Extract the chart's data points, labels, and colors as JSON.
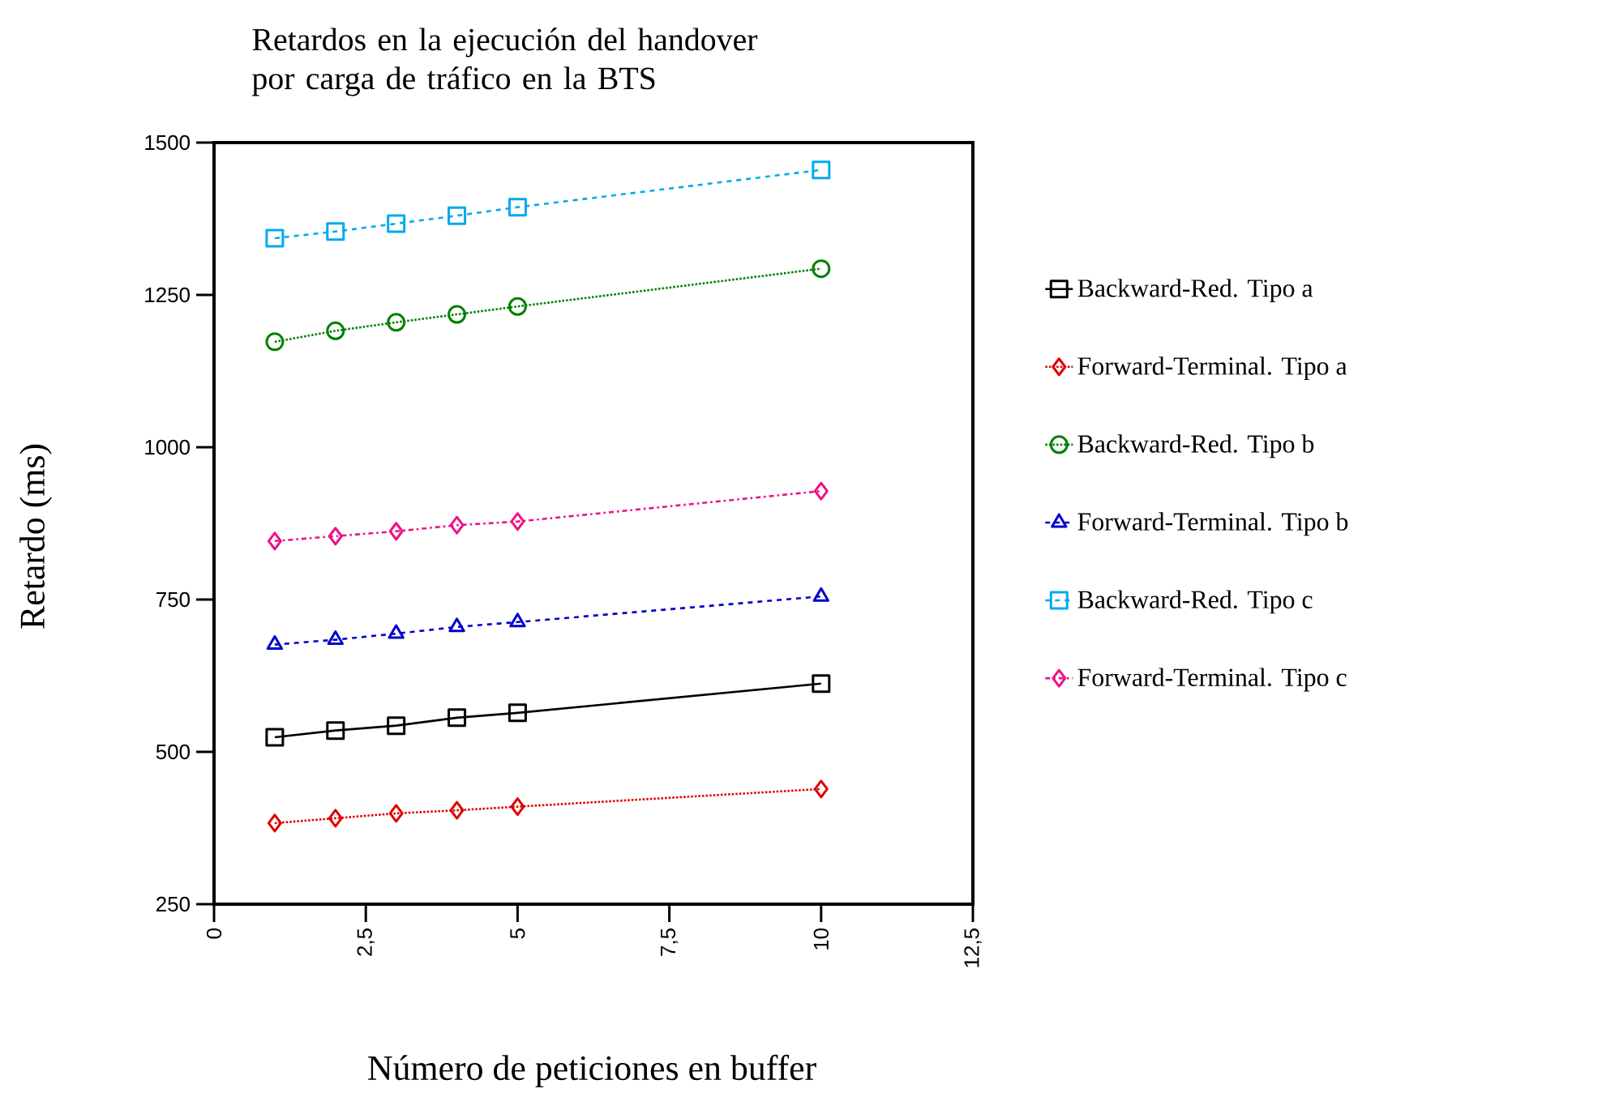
{
  "chart_data": {
    "type": "line",
    "title": "Retardos en la ejecución del handover por carga de tráfico en la BTS",
    "xlabel": "Número de peticiones en buffer",
    "ylabel": "Retardo (ms)",
    "xlim": [
      0,
      12.5
    ],
    "xticks": [
      0,
      {
        "value": 2.5,
        "label": "2,5"
      },
      5,
      {
        "value": 7.5,
        "label": "7,5"
      },
      10,
      {
        "value": 12.5,
        "label": "12,5"
      }
    ],
    "ylim": [
      250,
      1500
    ],
    "yticks": [
      250,
      500,
      750,
      1000,
      1250,
      1500
    ],
    "grid": false,
    "legend": "right",
    "x": [
      1,
      2,
      3,
      4,
      5,
      10
    ],
    "series": [
      {
        "name": "Backward-Red. Tipo a",
        "color": "#000000",
        "marker": "square",
        "line_style": "solid",
        "values": [
          524,
          535,
          543,
          556,
          564,
          612
        ]
      },
      {
        "name": "Forward-Terminal. Tipo a",
        "color": "#e00000",
        "marker": "diamond",
        "line_style": "dotted",
        "values": [
          383,
          391,
          399,
          404,
          410,
          439
        ]
      },
      {
        "name": "Backward-Red. Tipo b",
        "color": "#008000",
        "marker": "circle",
        "line_style": "dotted",
        "values": [
          1173,
          1191,
          1205,
          1218,
          1231,
          1293
        ]
      },
      {
        "name": "Forward-Terminal. Tipo b",
        "color": "#0000cc",
        "marker": "triangle",
        "line_style": "dashed",
        "values": [
          676,
          684,
          694,
          705,
          713,
          755
        ]
      },
      {
        "name": "Backward-Red. Tipo c",
        "color": "#00aaee",
        "marker": "square",
        "line_style": "dashed",
        "values": [
          1343,
          1354,
          1367,
          1380,
          1394,
          1455
        ]
      },
      {
        "name": "Forward-Terminal. Tipo c",
        "color": "#ee1188",
        "marker": "diamond",
        "line_style": "dashdot",
        "values": [
          846,
          854,
          862,
          872,
          878,
          928
        ]
      }
    ]
  }
}
